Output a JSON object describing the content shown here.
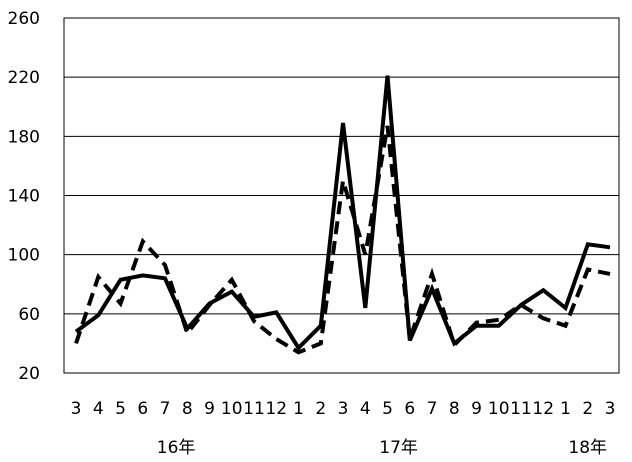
{
  "chart_data": {
    "type": "line",
    "ylim": [
      20,
      260
    ],
    "yticks": [
      "20",
      "60",
      "100",
      "140",
      "180",
      "220",
      "260"
    ],
    "x_labels": [
      "3",
      "4",
      "5",
      "6",
      "7",
      "8",
      "9",
      "10",
      "11",
      "12",
      "1",
      "2",
      "3",
      "4",
      "5",
      "6",
      "7",
      "8",
      "9",
      "10",
      "11",
      "12",
      "1",
      "2",
      "3"
    ],
    "year_labels": [
      {
        "text": "16年",
        "index": 4.5
      },
      {
        "text": "17年",
        "index": 14.5
      },
      {
        "text": "18年",
        "index": 23
      }
    ],
    "grid": "horizontal",
    "series": [
      {
        "style": "solid",
        "color": "#000000",
        "values": [
          48,
          59,
          83,
          86,
          84,
          50,
          67,
          75,
          58,
          61,
          37,
          52,
          189,
          64,
          221,
          42,
          77,
          40,
          52,
          52,
          66,
          76,
          64,
          107,
          105
        ]
      },
      {
        "style": "dashed",
        "color": "#000000",
        "values": [
          40,
          85,
          67,
          109,
          93,
          47,
          66,
          83,
          55,
          43,
          34,
          40,
          150,
          100,
          187,
          43,
          87,
          39,
          54,
          56,
          66,
          57,
          52,
          90,
          87
        ]
      }
    ]
  }
}
